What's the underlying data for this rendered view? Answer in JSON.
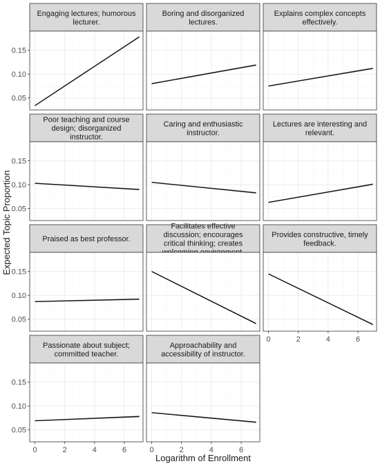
{
  "chart_data": {
    "type": "line",
    "layout": "facet-grid",
    "ylabel": "Expected Topic Proportion",
    "xlabel": "Logarithm of Enrollment",
    "xlim": [
      -0.35,
      7.25
    ],
    "ylim": [
      0.025,
      0.19
    ],
    "x_ticks": [
      "0",
      "2",
      "4",
      "6"
    ],
    "y_ticks": [
      "0.05",
      "0.10",
      "0.15"
    ],
    "grid": true,
    "panels": [
      {
        "title": "Engaging lectures; humorous lecturer.",
        "x": [
          0,
          7
        ],
        "y": [
          0.034,
          0.178
        ]
      },
      {
        "title": "Boring and disorganized lectures.",
        "x": [
          0,
          7
        ],
        "y": [
          0.08,
          0.119
        ]
      },
      {
        "title": "Explains complex concepts effectively.",
        "x": [
          0,
          7
        ],
        "y": [
          0.075,
          0.112
        ]
      },
      {
        "title": "Poor teaching and course design; disorganized instructor.",
        "x": [
          0,
          7
        ],
        "y": [
          0.103,
          0.09
        ]
      },
      {
        "title": "Caring and enthusiastic instructor.",
        "x": [
          0,
          7
        ],
        "y": [
          0.105,
          0.083
        ]
      },
      {
        "title": "Lectures are interesting and relevant.",
        "x": [
          0,
          7
        ],
        "y": [
          0.063,
          0.101
        ]
      },
      {
        "title": "Praised as best professor.",
        "x": [
          0,
          7
        ],
        "y": [
          0.087,
          0.092
        ]
      },
      {
        "title": "Facilitates effective discussion; encourages critical thinking; creates welcoming environment.",
        "x": [
          0,
          7
        ],
        "y": [
          0.15,
          0.041
        ]
      },
      {
        "title": "Provides constructive, timely feedback.",
        "x": [
          0,
          7
        ],
        "y": [
          0.145,
          0.039
        ]
      },
      {
        "title": "Passionate about subject; committed teacher.",
        "x": [
          0,
          7
        ],
        "y": [
          0.069,
          0.078
        ]
      },
      {
        "title": "Approachability and accessibility of instructor.",
        "x": [
          0,
          7
        ],
        "y": [
          0.086,
          0.066
        ]
      }
    ],
    "colors": {
      "line": "#111111",
      "band": "#9a9a9a",
      "strip_bg": "#d9d9d9",
      "panel_border": "#333333",
      "grid": "#ebebeb",
      "text": "#1a1a1a",
      "tick_label": "#4d4d4d"
    }
  }
}
